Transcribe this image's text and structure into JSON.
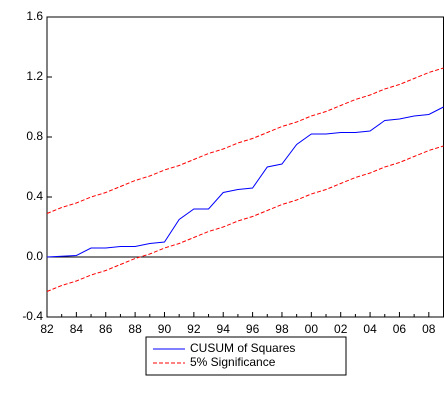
{
  "chart_data": {
    "type": "line",
    "categories": [
      "82",
      null,
      "84",
      null,
      "86",
      null,
      "88",
      null,
      "90",
      null,
      "92",
      null,
      "94",
      null,
      "96",
      null,
      "98",
      null,
      "00",
      null,
      "02",
      null,
      "04",
      null,
      "06",
      null,
      "08",
      null
    ],
    "series": [
      {
        "name": "CUSUM of Squares",
        "color": "#0000ff",
        "dash": "none",
        "values": [
          0.0,
          0.005,
          0.01,
          0.06,
          0.06,
          0.07,
          0.07,
          0.09,
          0.1,
          0.25,
          0.32,
          0.32,
          0.43,
          0.45,
          0.46,
          0.6,
          0.62,
          0.75,
          0.82,
          0.82,
          0.83,
          0.83,
          0.84,
          0.91,
          0.92,
          0.94,
          0.95,
          1.0
        ]
      }
    ],
    "bands": {
      "name": "5% Significance",
      "color": "#ff0000",
      "dash": "4,2",
      "upper": [
        0.29,
        0.33,
        0.36,
        0.4,
        0.43,
        0.47,
        0.51,
        0.54,
        0.58,
        0.61,
        0.65,
        0.69,
        0.72,
        0.76,
        0.79,
        0.83,
        0.87,
        0.9,
        0.94,
        0.97,
        1.01,
        1.05,
        1.08,
        1.12,
        1.15,
        1.19,
        1.23,
        1.26
      ],
      "lower": [
        -0.23,
        -0.19,
        -0.16,
        -0.12,
        -0.09,
        -0.05,
        -0.01,
        0.02,
        0.06,
        0.09,
        0.13,
        0.17,
        0.2,
        0.24,
        0.27,
        0.31,
        0.35,
        0.38,
        0.42,
        0.45,
        0.49,
        0.53,
        0.56,
        0.6,
        0.63,
        0.67,
        0.71,
        0.74
      ]
    },
    "reference_line": 0,
    "ylim": [
      -0.4,
      1.6
    ],
    "yticks": [
      {
        "value": -0.4,
        "label": "-0.4"
      },
      {
        "value": 0,
        "label": "0.0"
      },
      0.4,
      0.8,
      1.2,
      1.6
    ],
    "legend": "bottom"
  }
}
